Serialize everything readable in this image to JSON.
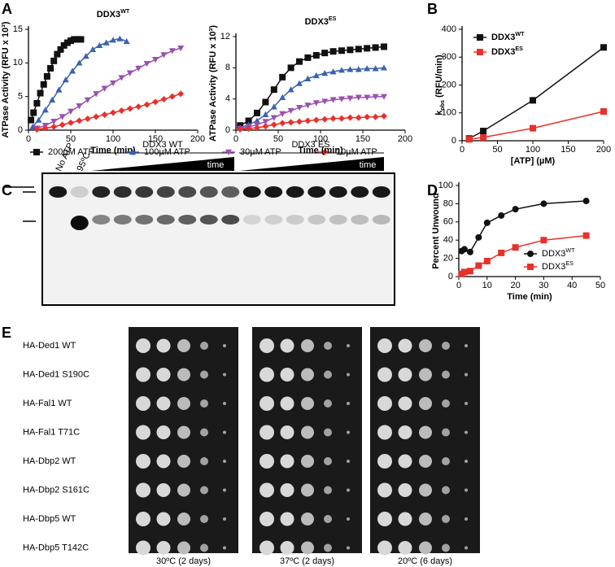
{
  "panel_labels": [
    "A",
    "B",
    "C",
    "D",
    "E"
  ],
  "chart_data": [
    {
      "type": "scatter",
      "title": "DDX3",
      "title_superscript": "WT",
      "xlabel": "Time (min)",
      "ylabel": "ATPase Activity (RFU x 10³)",
      "xlim": [
        0,
        200
      ],
      "xticks": [
        0,
        50,
        100,
        150,
        200
      ],
      "ylim": [
        0,
        15
      ],
      "yticks": [
        0,
        5,
        10,
        15
      ],
      "connect": true,
      "legend": "below",
      "series": [
        {
          "name": "200µM ATP",
          "color": "#111111",
          "marker": "square",
          "x": [
            3,
            6,
            10,
            14,
            18,
            22,
            26,
            30,
            34,
            38,
            42,
            46,
            50,
            54,
            58,
            62
          ],
          "values": [
            1.5,
            2.6,
            4,
            5.5,
            6.8,
            8,
            9.2,
            10.3,
            11.3,
            12,
            12.6,
            13,
            13.3,
            13.5,
            13.5,
            13.5
          ]
        },
        {
          "name": "100µM ATP",
          "color": "#3a62b0",
          "marker": "triangle",
          "x": [
            5,
            12,
            20,
            28,
            36,
            44,
            52,
            60,
            68,
            76,
            84,
            92,
            100,
            108,
            116
          ],
          "values": [
            0.5,
            1.5,
            3,
            4.5,
            6,
            7.5,
            8.8,
            10,
            11,
            12,
            12.6,
            13,
            13.4,
            13.6,
            13.2
          ]
        },
        {
          "name": "30µM ATP",
          "color": "#9b4fb0",
          "marker": "down",
          "x": [
            10,
            20,
            30,
            40,
            50,
            60,
            70,
            80,
            90,
            100,
            110,
            120,
            130,
            140,
            150,
            160,
            170,
            180
          ],
          "values": [
            0.3,
            0.7,
            1.3,
            2,
            2.8,
            3.6,
            4.5,
            5.4,
            6.2,
            7,
            7.8,
            8.5,
            9.2,
            9.9,
            10.5,
            11.2,
            11.8,
            12.2
          ]
        },
        {
          "name": "10µM ATP",
          "color": "#e8312a",
          "marker": "diamond",
          "x": [
            10,
            20,
            30,
            40,
            50,
            60,
            70,
            80,
            90,
            100,
            110,
            120,
            130,
            140,
            150,
            160,
            170,
            180
          ],
          "values": [
            0.1,
            0.3,
            0.5,
            0.8,
            1.1,
            1.4,
            1.7,
            2,
            2.3,
            2.6,
            2.9,
            3.2,
            3.5,
            3.8,
            4.2,
            4.6,
            5,
            5.4
          ]
        }
      ]
    },
    {
      "type": "scatter",
      "title": "DDX3",
      "title_superscript": "ES",
      "xlabel": "Time (min)",
      "ylabel": "ATPase Activity (RFU x 10³)",
      "xlim": [
        0,
        200
      ],
      "xticks": [
        0,
        50,
        100,
        150,
        200
      ],
      "ylim": [
        0,
        12
      ],
      "yticks": [
        0,
        4,
        8,
        12
      ],
      "connect": true,
      "series": [
        {
          "color": "#111111",
          "marker": "square",
          "x": [
            5,
            15,
            25,
            35,
            45,
            55,
            65,
            75,
            85,
            95,
            105,
            115,
            125,
            135,
            145,
            155,
            165,
            175
          ],
          "values": [
            0.6,
            1.2,
            2.2,
            3.6,
            5.2,
            6.8,
            8,
            8.8,
            9.3,
            9.6,
            9.9,
            10.1,
            10.2,
            10.3,
            10.4,
            10.5,
            10.6,
            10.7
          ]
        },
        {
          "color": "#3a62b0",
          "marker": "triangle",
          "x": [
            5,
            15,
            25,
            35,
            45,
            55,
            65,
            75,
            85,
            95,
            105,
            115,
            125,
            135,
            145,
            155,
            165,
            175
          ],
          "values": [
            0.3,
            0.7,
            1.2,
            2,
            3,
            4.2,
            5.2,
            6,
            6.6,
            7,
            7.3,
            7.5,
            7.7,
            7.8,
            7.8,
            7.9,
            7.9,
            8
          ]
        },
        {
          "color": "#9b4fb0",
          "marker": "down",
          "x": [
            5,
            15,
            25,
            35,
            45,
            55,
            65,
            75,
            85,
            95,
            105,
            115,
            125,
            135,
            145,
            155,
            165,
            175
          ],
          "values": [
            0.2,
            0.4,
            0.7,
            1.1,
            1.6,
            2.1,
            2.5,
            2.9,
            3.2,
            3.5,
            3.7,
            3.9,
            4,
            4.1,
            4.2,
            4.2,
            4.3,
            4.3
          ]
        },
        {
          "color": "#e8312a",
          "marker": "diamond",
          "x": [
            5,
            15,
            25,
            35,
            45,
            55,
            65,
            75,
            85,
            95,
            105,
            115,
            125,
            135,
            145,
            155,
            165,
            175
          ],
          "values": [
            0.1,
            0.2,
            0.3,
            0.5,
            0.7,
            0.9,
            1,
            1.1,
            1.2,
            1.3,
            1.4,
            1.5,
            1.5,
            1.6,
            1.6,
            1.7,
            1.7,
            1.8
          ]
        }
      ]
    },
    {
      "type": "scatter",
      "xlabel": "[ATP] (µM)",
      "ylabel": "k",
      "ylabel_subscript": "obs",
      "ylabel_suffix": "(RFU/min)",
      "xlim": [
        0,
        200
      ],
      "xticks": [
        0,
        50,
        100,
        150,
        200
      ],
      "ylim": [
        0,
        400
      ],
      "yticks": [
        0,
        100,
        200,
        300,
        400
      ],
      "connect": true,
      "legend": "upper left",
      "series": [
        {
          "name": "DDX3",
          "name_superscript": "WT",
          "color": "#111111",
          "marker": "square",
          "x": [
            10,
            30,
            100,
            200
          ],
          "values": [
            8,
            35,
            145,
            335
          ]
        },
        {
          "name": "DDX3",
          "name_superscript": "ES",
          "color": "#e8312a",
          "marker": "square",
          "x": [
            10,
            30,
            100,
            200
          ],
          "values": [
            5,
            12,
            45,
            105
          ]
        }
      ]
    },
    {
      "type": "scatter",
      "xlabel": "Time (min)",
      "ylabel": "Percent Unwound",
      "xlim": [
        0,
        50
      ],
      "xticks": [
        0,
        10,
        20,
        30,
        40,
        50
      ],
      "ylim": [
        0,
        100
      ],
      "yticks": [
        0,
        20,
        40,
        60,
        80,
        100
      ],
      "connect": true,
      "legend": "lower right",
      "series": [
        {
          "name": "DDX3",
          "name_superscript": "WT",
          "color": "#111111",
          "marker": "circle",
          "x": [
            1,
            2,
            4,
            7,
            10,
            15,
            20,
            30,
            45
          ],
          "values": [
            28,
            30,
            27,
            43,
            59,
            67,
            74,
            80,
            83
          ]
        },
        {
          "name": "DDX3",
          "name_superscript": "ES",
          "color": "#e8312a",
          "marker": "square",
          "x": [
            1,
            2,
            4,
            7,
            10,
            15,
            20,
            30,
            45
          ],
          "values": [
            3,
            5,
            6,
            12,
            17,
            26,
            32,
            40,
            45
          ]
        }
      ]
    }
  ],
  "gel": {
    "lanes": [
      "No ATP",
      "95ºC"
    ],
    "groups": [
      {
        "label": "DDX3 WT",
        "ramp": "time"
      },
      {
        "label": "DDX3 ES",
        "ramp": "time"
      }
    ]
  },
  "spot_assay": {
    "strains": [
      "HA-Ded1 WT",
      "HA-Ded1 S190C",
      "HA-Fal1 WT",
      "HA-Fal1 T71C",
      "HA-Dbp2 WT",
      "HA-Dbp2 S161C",
      "HA-Dbp5 WT",
      "HA-Dbp5 T142C"
    ],
    "conditions": [
      "30ºC (2 days)",
      "37ºC (2 days)",
      "20ºC (6 days)"
    ]
  }
}
